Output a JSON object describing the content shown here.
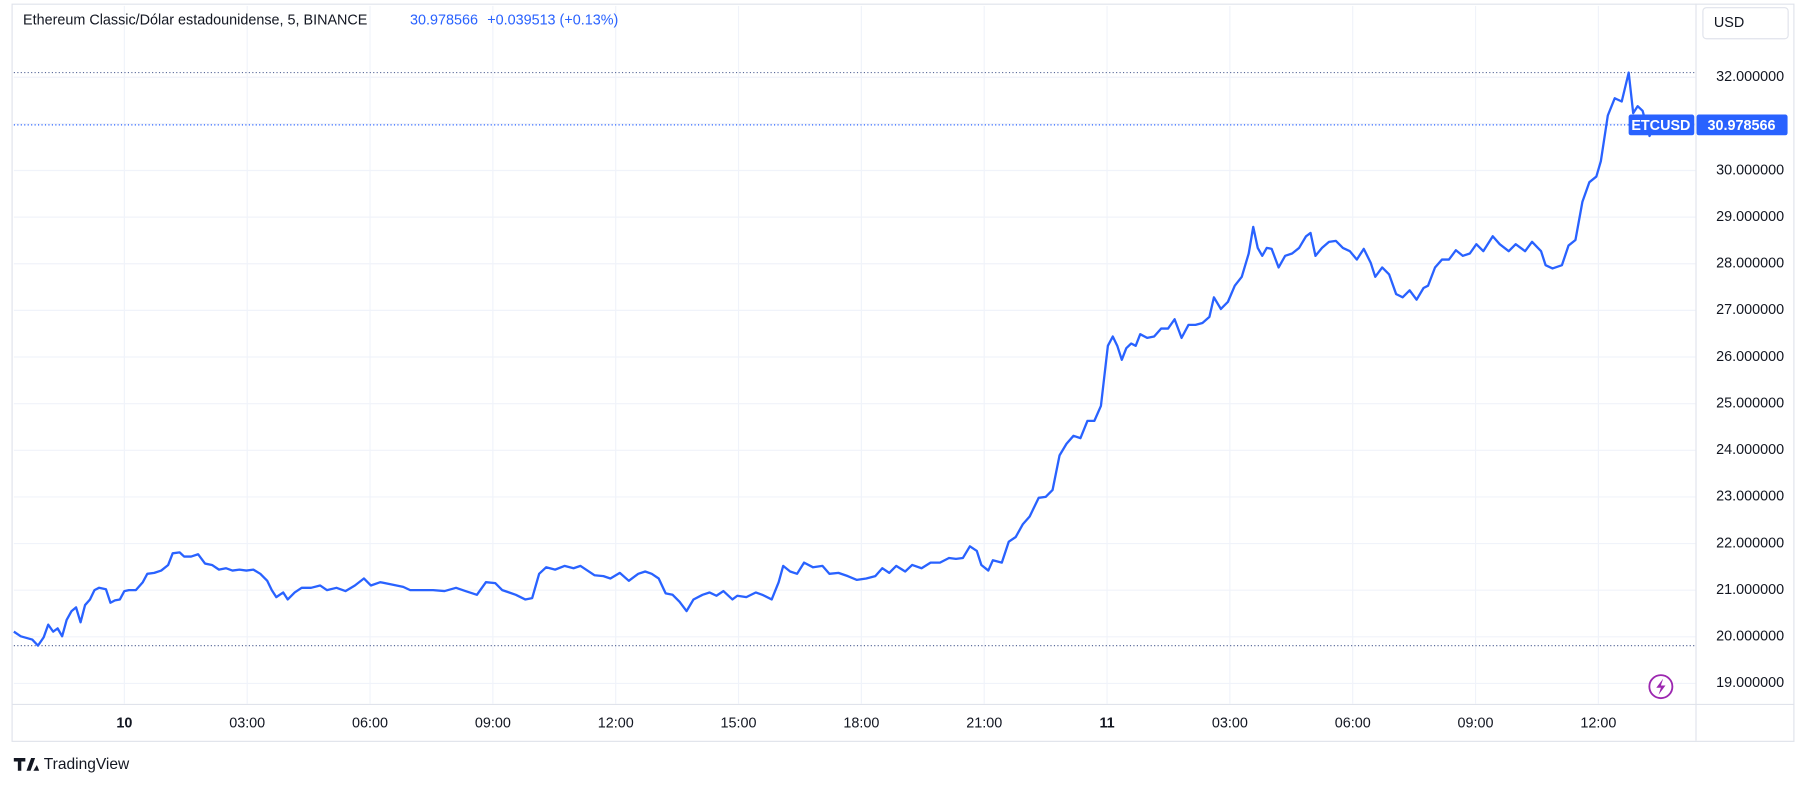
{
  "chart_data": {
    "type": "line",
    "title": "Ethereum Classic/Dólar estadounidense, 5, BINANCE",
    "last_value": 30.978566,
    "change": "+0.039513 (+0.13%)",
    "currency": "USD",
    "brand": "TradingView",
    "x": [
      -2.7,
      -2.53,
      -2.25,
      -2.11,
      -1.97,
      -1.86,
      -1.74,
      -1.63,
      -1.52,
      -1.41,
      -1.29,
      -1.18,
      -1.07,
      -0.96,
      -0.84,
      -0.73,
      -0.62,
      -0.45,
      -0.34,
      -0.23,
      -0.11,
      0,
      0.11,
      0.28,
      0.45,
      0.56,
      0.73,
      0.9,
      1.07,
      1.18,
      1.35,
      1.46,
      1.63,
      1.8,
      1.97,
      2.14,
      2.31,
      2.48,
      2.64,
      2.81,
      2.98,
      3.15,
      3.32,
      3.49,
      3.6,
      3.71,
      3.88,
      3.99,
      4.16,
      4.33,
      4.56,
      4.78,
      4.95,
      5.18,
      5.4,
      5.63,
      5.85,
      6.02,
      6.25,
      6.53,
      6.81,
      6.98,
      7.26,
      7.54,
      7.82,
      8.1,
      8.33,
      8.61,
      8.83,
      9.06,
      9.23,
      9.4,
      9.56,
      9.79,
      9.96,
      10.13,
      10.3,
      10.52,
      10.75,
      10.97,
      11.14,
      11.31,
      11.48,
      11.7,
      11.87,
      12.1,
      12.32,
      12.55,
      12.72,
      12.88,
      13.05,
      13.22,
      13.39,
      13.56,
      13.73,
      13.9,
      14.12,
      14.29,
      14.46,
      14.63,
      14.85,
      14.97,
      15.19,
      15.42,
      15.58,
      15.81,
      15.98,
      16.09,
      16.26,
      16.43,
      16.6,
      16.82,
      17.05,
      17.22,
      17.44,
      17.67,
      17.89,
      18.12,
      18.34,
      18.51,
      18.68,
      18.85,
      19.07,
      19.24,
      19.47,
      19.69,
      19.92,
      20.14,
      20.31,
      20.48,
      20.65,
      20.82,
      20.93,
      21.1,
      21.21,
      21.43,
      21.6,
      21.77,
      21.94,
      22.11,
      22.33,
      22.5,
      22.67,
      22.84,
      23.01,
      23.18,
      23.35,
      23.52,
      23.69,
      23.85,
      24.02,
      24.14,
      24.25,
      24.36,
      24.47,
      24.59,
      24.7,
      24.81,
      24.98,
      25.15,
      25.32,
      25.49,
      25.65,
      25.82,
      25.99,
      26.16,
      26.33,
      26.5,
      26.61,
      26.78,
      26.95,
      27.12,
      27.29,
      27.46,
      27.57,
      27.68,
      27.79,
      27.9,
      28.02,
      28.19,
      28.35,
      28.52,
      28.69,
      28.86,
      28.97,
      29.09,
      29.25,
      29.42,
      29.59,
      29.76,
      29.93,
      30.1,
      30.27,
      30.44,
      30.55,
      30.72,
      30.89,
      31.06,
      31.22,
      31.39,
      31.56,
      31.73,
      31.84,
      32.01,
      32.18,
      32.35,
      32.52,
      32.69,
      32.86,
      33.02,
      33.19,
      33.42,
      33.59,
      33.81,
      33.98,
      34.21,
      34.38,
      34.6,
      34.71,
      34.88,
      35.11,
      35.27,
      35.44,
      35.61,
      35.78,
      35.95,
      36.06,
      36.23,
      36.4,
      36.57,
      36.74,
      36.85,
      36.96,
      37.08,
      37.25,
      37.36
    ],
    "series": [
      {
        "name": "ETCUSD",
        "color": "#2962ff",
        "values": [
          20.11,
          20.01,
          19.94,
          19.81,
          19.99,
          20.26,
          20.11,
          20.18,
          20.01,
          20.36,
          20.55,
          20.63,
          20.31,
          20.68,
          20.8,
          21,
          21.05,
          21.02,
          20.73,
          20.78,
          20.8,
          20.98,
          21,
          21,
          21.17,
          21.35,
          21.37,
          21.42,
          21.54,
          21.79,
          21.81,
          21.72,
          21.72,
          21.77,
          21.57,
          21.54,
          21.44,
          21.47,
          21.42,
          21.44,
          21.42,
          21.44,
          21.35,
          21.2,
          21,
          20.85,
          20.95,
          20.8,
          20.95,
          21.05,
          21.05,
          21.1,
          21,
          21.05,
          20.98,
          21.1,
          21.25,
          21.1,
          21.17,
          21.12,
          21.07,
          21,
          21,
          21,
          20.98,
          21.05,
          20.98,
          20.9,
          21.17,
          21.15,
          21,
          20.95,
          20.9,
          20.8,
          20.83,
          21.35,
          21.49,
          21.44,
          21.52,
          21.47,
          21.52,
          21.42,
          21.32,
          21.3,
          21.25,
          21.37,
          21.2,
          21.35,
          21.4,
          21.35,
          21.25,
          20.93,
          20.9,
          20.75,
          20.55,
          20.8,
          20.9,
          20.95,
          20.88,
          20.98,
          20.8,
          20.88,
          20.85,
          20.95,
          20.9,
          20.8,
          21.17,
          21.52,
          21.4,
          21.35,
          21.59,
          21.49,
          21.52,
          21.35,
          21.37,
          21.3,
          21.22,
          21.25,
          21.3,
          21.47,
          21.37,
          21.52,
          21.4,
          21.54,
          21.47,
          21.59,
          21.59,
          21.69,
          21.67,
          21.69,
          21.94,
          21.84,
          21.54,
          21.42,
          21.64,
          21.59,
          22.04,
          22.14,
          22.41,
          22.58,
          22.98,
          23,
          23.15,
          23.89,
          24.14,
          24.31,
          24.26,
          24.63,
          24.63,
          24.95,
          26.24,
          26.44,
          26.24,
          25.94,
          26.19,
          26.29,
          26.24,
          26.49,
          26.41,
          26.44,
          26.61,
          26.61,
          26.81,
          26.41,
          26.69,
          26.69,
          26.73,
          26.86,
          27.28,
          27.03,
          27.18,
          27.53,
          27.72,
          28.22,
          28.79,
          28.34,
          28.17,
          28.34,
          28.32,
          27.92,
          28.17,
          28.22,
          28.34,
          28.59,
          28.66,
          28.17,
          28.34,
          28.47,
          28.49,
          28.34,
          28.27,
          28.09,
          28.32,
          28.02,
          27.72,
          27.92,
          27.77,
          27.35,
          27.28,
          27.43,
          27.23,
          27.48,
          27.53,
          27.92,
          28.09,
          28.09,
          28.29,
          28.17,
          28.22,
          28.42,
          28.27,
          28.59,
          28.42,
          28.27,
          28.42,
          28.27,
          28.47,
          28.27,
          27.97,
          27.9,
          27.97,
          28.39,
          28.51,
          29.33,
          29.75,
          29.87,
          30.2,
          31.18,
          31.55,
          31.48,
          32.1,
          31.23,
          31.38,
          31.28,
          30.74,
          30.98
        ]
      }
    ],
    "xlim": [
      -2.7,
      38.37
    ],
    "ylim": [
      18.56,
      33.53
    ],
    "xticks": [
      {
        "value": 0,
        "label": "10"
      },
      {
        "value": 3,
        "label": "03:00"
      },
      {
        "value": 6,
        "label": "06:00"
      },
      {
        "value": 9,
        "label": "09:00"
      },
      {
        "value": 12,
        "label": "12:00"
      },
      {
        "value": 15,
        "label": "15:00"
      },
      {
        "value": 18,
        "label": "18:00"
      },
      {
        "value": 21,
        "label": "21:00"
      },
      {
        "value": 24,
        "label": "11"
      },
      {
        "value": 27,
        "label": "03:00"
      },
      {
        "value": 30,
        "label": "06:00"
      },
      {
        "value": 33,
        "label": "09:00"
      },
      {
        "value": 36,
        "label": "12:00"
      }
    ],
    "yticks": [
      {
        "value": 19,
        "label": "19.000000"
      },
      {
        "value": 20,
        "label": "20.000000"
      },
      {
        "value": 21,
        "label": "21.000000"
      },
      {
        "value": 22,
        "label": "22.000000"
      },
      {
        "value": 23,
        "label": "23.000000"
      },
      {
        "value": 24,
        "label": "24.000000"
      },
      {
        "value": 25,
        "label": "25.000000"
      },
      {
        "value": 26,
        "label": "26.000000"
      },
      {
        "value": 27,
        "label": "27.000000"
      },
      {
        "value": 28,
        "label": "28.000000"
      },
      {
        "value": 29,
        "label": "29.000000"
      },
      {
        "value": 30,
        "label": "30.000000"
      },
      {
        "value": 31,
        "label": "31.000000"
      },
      {
        "value": 32,
        "label": "32.000000"
      }
    ],
    "grid": true
  }
}
